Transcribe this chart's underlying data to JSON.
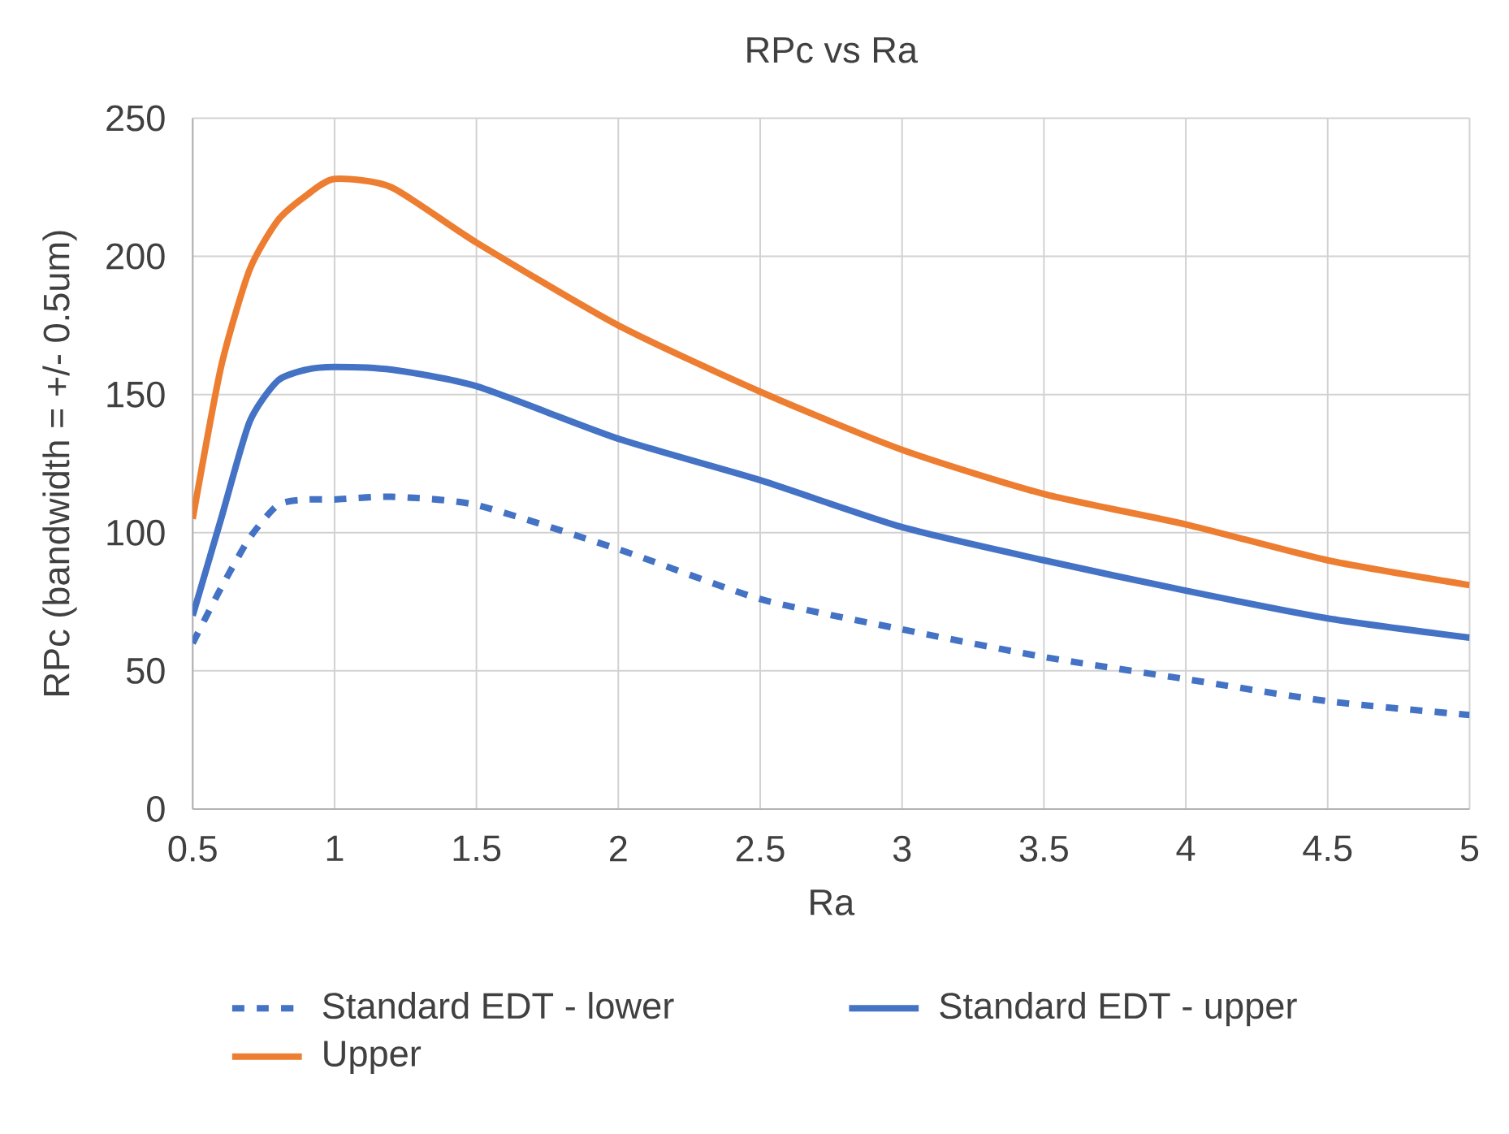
{
  "chart_data": {
    "type": "line",
    "title": "RPc vs Ra",
    "xlabel": "Ra",
    "ylabel": "RPc (bandwidth = +/- 0.5um)",
    "xlim": [
      0.5,
      5
    ],
    "xticks": [
      0.5,
      1,
      1.5,
      2,
      2.5,
      3,
      3.5,
      4,
      4.5,
      5
    ],
    "ylim": [
      0,
      250
    ],
    "yticks": [
      0,
      50,
      100,
      150,
      200,
      250
    ],
    "grid": true,
    "legend": "bottom",
    "marker": "none",
    "x": [
      0.5,
      0.6,
      0.7,
      0.8,
      0.9,
      1.0,
      1.2,
      1.5,
      2,
      2.5,
      3,
      3.5,
      4,
      4.5,
      5
    ],
    "series": [
      {
        "name": "Standard EDT - lower",
        "color": "#4472c4",
        "line_style": "dashed",
        "values": [
          60,
          80,
          98,
          110,
          112,
          112,
          113,
          110,
          94,
          76,
          65,
          55,
          47,
          39,
          34
        ]
      },
      {
        "name": "Standard EDT - upper",
        "color": "#4472c4",
        "line_style": "solid",
        "values": [
          70,
          105,
          140,
          155,
          159,
          160,
          159,
          153,
          134,
          119,
          102,
          90,
          79,
          69,
          62
        ]
      },
      {
        "name": "Upper",
        "color": "#ed7d31",
        "line_style": "solid",
        "values": [
          105,
          160,
          195,
          213,
          222,
          228,
          225,
          205,
          175,
          151,
          130,
          114,
          103,
          90,
          81
        ]
      }
    ]
  }
}
